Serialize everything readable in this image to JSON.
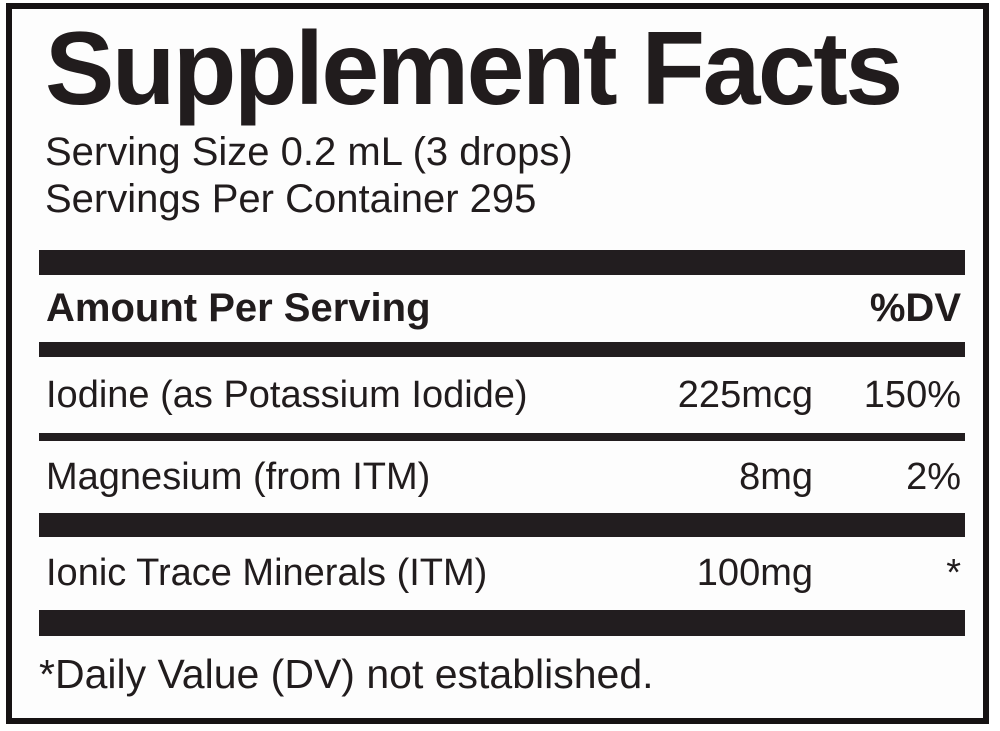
{
  "panel": {
    "title": "Supplement Facts",
    "serving_size": "Serving Size 0.2 mL (3 drops)",
    "servings_per_container": "Servings Per Container 295",
    "header": {
      "amount_label": "Amount Per Serving",
      "dv_label": "%DV"
    },
    "rows": [
      {
        "name": "Iodine (as Potassium Iodide)",
        "amount": "225mcg",
        "dv": "150%"
      },
      {
        "name": "Magnesium (from ITM)",
        "amount": "8mg",
        "dv": "2%"
      },
      {
        "name": "Ionic Trace Minerals (ITM)",
        "amount": "100mg",
        "dv": "*"
      }
    ],
    "footnote": "*Daily Value (DV) not established.",
    "colors": {
      "ink": "#211c1d",
      "bar": "#221d1f",
      "background": "#fdfdfd",
      "border": "#161213"
    }
  }
}
